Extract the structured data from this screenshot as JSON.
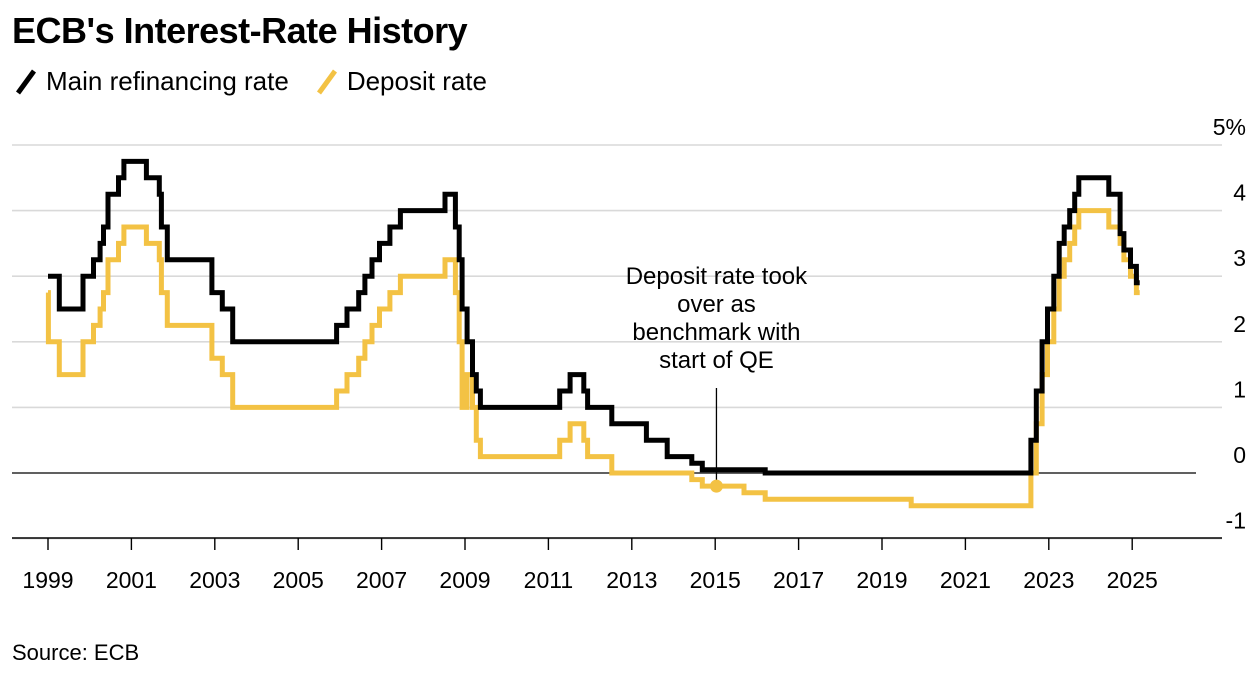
{
  "title": "ECB's Interest-Rate History",
  "source": "Source: ECB",
  "colors": {
    "main": "#000000",
    "deposit": "#f3c244",
    "grid": "#d9d9d9"
  },
  "chart_data": {
    "type": "line",
    "xlim": [
      1999,
      2026.9
    ],
    "ylim": [
      -1,
      5
    ],
    "x_ticks": [
      1999,
      2001,
      2003,
      2005,
      2007,
      2009,
      2011,
      2013,
      2015,
      2017,
      2019,
      2021,
      2023,
      2025
    ],
    "y_ticks": [
      -1,
      0,
      1,
      2,
      3,
      4,
      5
    ],
    "y_tick_labels": [
      "-1",
      "0",
      "1",
      "2",
      "3",
      "4",
      "5%"
    ],
    "legend_position": "top-left",
    "grid": true,
    "series": [
      {
        "name": "Main refinancing rate",
        "color": "#000000",
        "points": [
          [
            1999.0,
            3.0
          ],
          [
            1999.27,
            3.0
          ],
          [
            1999.27,
            2.5
          ],
          [
            1999.84,
            2.5
          ],
          [
            1999.84,
            3.0
          ],
          [
            2000.09,
            3.0
          ],
          [
            2000.09,
            3.25
          ],
          [
            2000.25,
            3.25
          ],
          [
            2000.25,
            3.5
          ],
          [
            2000.33,
            3.5
          ],
          [
            2000.33,
            3.75
          ],
          [
            2000.44,
            3.75
          ],
          [
            2000.44,
            4.25
          ],
          [
            2000.69,
            4.25
          ],
          [
            2000.69,
            4.5
          ],
          [
            2000.82,
            4.5
          ],
          [
            2000.82,
            4.75
          ],
          [
            2001.36,
            4.75
          ],
          [
            2001.36,
            4.5
          ],
          [
            2001.67,
            4.5
          ],
          [
            2001.67,
            4.25
          ],
          [
            2001.72,
            4.25
          ],
          [
            2001.72,
            3.75
          ],
          [
            2001.86,
            3.75
          ],
          [
            2001.86,
            3.25
          ],
          [
            2002.93,
            3.25
          ],
          [
            2002.93,
            2.75
          ],
          [
            2003.18,
            2.75
          ],
          [
            2003.18,
            2.5
          ],
          [
            2003.43,
            2.5
          ],
          [
            2003.43,
            2.0
          ],
          [
            2005.92,
            2.0
          ],
          [
            2005.92,
            2.25
          ],
          [
            2006.17,
            2.25
          ],
          [
            2006.17,
            2.5
          ],
          [
            2006.45,
            2.5
          ],
          [
            2006.45,
            2.75
          ],
          [
            2006.6,
            2.75
          ],
          [
            2006.6,
            3.0
          ],
          [
            2006.77,
            3.0
          ],
          [
            2006.77,
            3.25
          ],
          [
            2006.95,
            3.25
          ],
          [
            2006.95,
            3.5
          ],
          [
            2007.2,
            3.5
          ],
          [
            2007.2,
            3.75
          ],
          [
            2007.45,
            3.75
          ],
          [
            2007.45,
            4.0
          ],
          [
            2008.52,
            4.0
          ],
          [
            2008.52,
            4.25
          ],
          [
            2008.77,
            4.25
          ],
          [
            2008.77,
            3.75
          ],
          [
            2008.86,
            3.75
          ],
          [
            2008.86,
            3.25
          ],
          [
            2008.93,
            3.25
          ],
          [
            2008.93,
            2.5
          ],
          [
            2009.05,
            2.5
          ],
          [
            2009.05,
            2.0
          ],
          [
            2009.18,
            2.0
          ],
          [
            2009.18,
            1.5
          ],
          [
            2009.27,
            1.5
          ],
          [
            2009.27,
            1.25
          ],
          [
            2009.37,
            1.25
          ],
          [
            2009.37,
            1.0
          ],
          [
            2011.27,
            1.0
          ],
          [
            2011.27,
            1.25
          ],
          [
            2011.52,
            1.25
          ],
          [
            2011.52,
            1.5
          ],
          [
            2011.85,
            1.5
          ],
          [
            2011.85,
            1.25
          ],
          [
            2011.94,
            1.25
          ],
          [
            2011.94,
            1.0
          ],
          [
            2012.52,
            1.0
          ],
          [
            2012.52,
            0.75
          ],
          [
            2013.35,
            0.75
          ],
          [
            2013.35,
            0.5
          ],
          [
            2013.85,
            0.5
          ],
          [
            2013.85,
            0.25
          ],
          [
            2014.44,
            0.25
          ],
          [
            2014.44,
            0.15
          ],
          [
            2014.69,
            0.15
          ],
          [
            2014.69,
            0.05
          ],
          [
            2016.2,
            0.05
          ],
          [
            2016.2,
            0.0
          ],
          [
            2022.57,
            0.0
          ],
          [
            2022.57,
            0.5
          ],
          [
            2022.7,
            0.5
          ],
          [
            2022.7,
            1.25
          ],
          [
            2022.84,
            1.25
          ],
          [
            2022.84,
            2.0
          ],
          [
            2022.97,
            2.0
          ],
          [
            2022.97,
            2.5
          ],
          [
            2023.12,
            2.5
          ],
          [
            2023.12,
            3.0
          ],
          [
            2023.25,
            3.0
          ],
          [
            2023.25,
            3.5
          ],
          [
            2023.37,
            3.5
          ],
          [
            2023.37,
            3.75
          ],
          [
            2023.5,
            3.75
          ],
          [
            2023.5,
            4.0
          ],
          [
            2023.62,
            4.0
          ],
          [
            2023.62,
            4.25
          ],
          [
            2023.72,
            4.25
          ],
          [
            2023.72,
            4.5
          ],
          [
            2024.44,
            4.5
          ],
          [
            2024.44,
            4.25
          ],
          [
            2024.71,
            4.25
          ],
          [
            2024.71,
            3.65
          ],
          [
            2024.8,
            3.65
          ],
          [
            2024.8,
            3.4
          ],
          [
            2024.96,
            3.4
          ],
          [
            2024.96,
            3.15
          ],
          [
            2025.1,
            3.15
          ],
          [
            2025.1,
            2.9
          ],
          [
            2025.18,
            2.9
          ]
        ]
      },
      {
        "name": "Deposit rate",
        "color": "#f3c244",
        "points": [
          [
            1999.0,
            2.75
          ],
          [
            1999.01,
            2.75
          ],
          [
            1999.01,
            2.0
          ],
          [
            1999.27,
            2.0
          ],
          [
            1999.27,
            1.5
          ],
          [
            1999.84,
            1.5
          ],
          [
            1999.84,
            2.0
          ],
          [
            2000.09,
            2.0
          ],
          [
            2000.09,
            2.25
          ],
          [
            2000.25,
            2.25
          ],
          [
            2000.25,
            2.5
          ],
          [
            2000.33,
            2.5
          ],
          [
            2000.33,
            2.75
          ],
          [
            2000.44,
            2.75
          ],
          [
            2000.44,
            3.25
          ],
          [
            2000.69,
            3.25
          ],
          [
            2000.69,
            3.5
          ],
          [
            2000.82,
            3.5
          ],
          [
            2000.82,
            3.75
          ],
          [
            2001.36,
            3.75
          ],
          [
            2001.36,
            3.5
          ],
          [
            2001.67,
            3.5
          ],
          [
            2001.67,
            3.25
          ],
          [
            2001.72,
            3.25
          ],
          [
            2001.72,
            2.75
          ],
          [
            2001.86,
            2.75
          ],
          [
            2001.86,
            2.25
          ],
          [
            2002.93,
            2.25
          ],
          [
            2002.93,
            1.75
          ],
          [
            2003.18,
            1.75
          ],
          [
            2003.18,
            1.5
          ],
          [
            2003.43,
            1.5
          ],
          [
            2003.43,
            1.0
          ],
          [
            2005.92,
            1.0
          ],
          [
            2005.92,
            1.25
          ],
          [
            2006.17,
            1.25
          ],
          [
            2006.17,
            1.5
          ],
          [
            2006.45,
            1.5
          ],
          [
            2006.45,
            1.75
          ],
          [
            2006.6,
            1.75
          ],
          [
            2006.6,
            2.0
          ],
          [
            2006.77,
            2.0
          ],
          [
            2006.77,
            2.25
          ],
          [
            2006.95,
            2.25
          ],
          [
            2006.95,
            2.5
          ],
          [
            2007.2,
            2.5
          ],
          [
            2007.2,
            2.75
          ],
          [
            2007.45,
            2.75
          ],
          [
            2007.45,
            3.0
          ],
          [
            2008.52,
            3.0
          ],
          [
            2008.52,
            3.25
          ],
          [
            2008.77,
            3.25
          ],
          [
            2008.77,
            2.75
          ],
          [
            2008.86,
            2.75
          ],
          [
            2008.86,
            2.0
          ],
          [
            2008.93,
            2.0
          ],
          [
            2008.93,
            1.0
          ],
          [
            2009.05,
            1.0
          ],
          [
            2009.05,
            1.5
          ],
          [
            2009.18,
            1.5
          ],
          [
            2009.18,
            1.0
          ],
          [
            2009.27,
            1.0
          ],
          [
            2009.27,
            0.5
          ],
          [
            2009.37,
            0.5
          ],
          [
            2009.37,
            0.25
          ],
          [
            2011.27,
            0.25
          ],
          [
            2011.27,
            0.5
          ],
          [
            2011.52,
            0.5
          ],
          [
            2011.52,
            0.75
          ],
          [
            2011.85,
            0.75
          ],
          [
            2011.85,
            0.5
          ],
          [
            2011.94,
            0.5
          ],
          [
            2011.94,
            0.25
          ],
          [
            2012.52,
            0.25
          ],
          [
            2012.52,
            0.0
          ],
          [
            2014.44,
            0.0
          ],
          [
            2014.44,
            -0.1
          ],
          [
            2014.69,
            -0.1
          ],
          [
            2014.69,
            -0.2
          ],
          [
            2015.69,
            -0.2
          ],
          [
            2015.69,
            -0.3
          ],
          [
            2016.2,
            -0.3
          ],
          [
            2016.2,
            -0.4
          ],
          [
            2019.7,
            -0.4
          ],
          [
            2019.7,
            -0.5
          ],
          [
            2022.57,
            -0.5
          ],
          [
            2022.57,
            0.0
          ],
          [
            2022.7,
            0.0
          ],
          [
            2022.7,
            0.75
          ],
          [
            2022.84,
            0.75
          ],
          [
            2022.84,
            1.5
          ],
          [
            2022.97,
            1.5
          ],
          [
            2022.97,
            2.0
          ],
          [
            2023.12,
            2.0
          ],
          [
            2023.12,
            2.5
          ],
          [
            2023.25,
            2.5
          ],
          [
            2023.25,
            3.0
          ],
          [
            2023.37,
            3.0
          ],
          [
            2023.37,
            3.25
          ],
          [
            2023.5,
            3.25
          ],
          [
            2023.5,
            3.5
          ],
          [
            2023.62,
            3.5
          ],
          [
            2023.62,
            3.75
          ],
          [
            2023.72,
            3.75
          ],
          [
            2023.72,
            4.0
          ],
          [
            2024.44,
            4.0
          ],
          [
            2024.44,
            3.75
          ],
          [
            2024.71,
            3.75
          ],
          [
            2024.71,
            3.5
          ],
          [
            2024.8,
            3.5
          ],
          [
            2024.8,
            3.25
          ],
          [
            2024.96,
            3.25
          ],
          [
            2024.96,
            3.0
          ],
          [
            2025.1,
            3.0
          ],
          [
            2025.1,
            2.75
          ],
          [
            2025.18,
            2.75
          ]
        ]
      }
    ],
    "annotation": {
      "lines": [
        "Deposit rate took",
        "over as",
        "benchmark with",
        "start of QE"
      ],
      "x": 2015.03,
      "y": -0.2
    }
  }
}
